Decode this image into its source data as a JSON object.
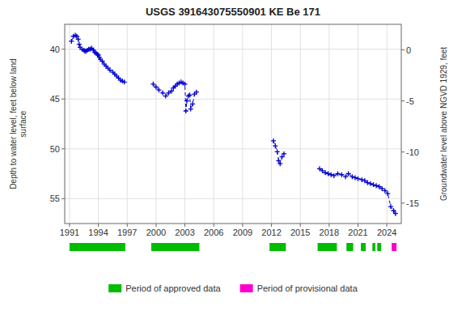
{
  "chart_data": {
    "type": "line",
    "title": "USGS 391643075550901 KE Be 171",
    "ylabel": "Depth to water level, feet below land\nsurface",
    "y2label": "Groundwater level above NGVD 1929, feet",
    "xlim": [
      1990.5,
      2025.5
    ],
    "xticks": [
      1991,
      1994,
      1997,
      2000,
      2003,
      2006,
      2009,
      2012,
      2015,
      2018,
      2021,
      2024
    ],
    "ylim": [
      57.5,
      37.5
    ],
    "yticks": [
      40,
      45,
      50,
      55
    ],
    "y2lim": [
      -17.0,
      2.5
    ],
    "y2ticks": [
      0,
      -5,
      -10,
      -15
    ],
    "grid": true,
    "color": "#0000cc",
    "line_style": "dashed",
    "marker": "plus",
    "series": [
      {
        "x": [
          1991.2,
          1991.4,
          1991.6,
          1991.75,
          1991.9,
          1992.0,
          1992.1,
          1992.3,
          1992.5,
          1992.6,
          1992.7,
          1992.85,
          1993.0,
          1993.15,
          1993.3,
          1993.5,
          1993.6,
          1993.75,
          1993.9,
          1994.0,
          1994.1,
          1994.2,
          1994.4,
          1994.6,
          1994.8,
          1995.0,
          1995.2,
          1995.5,
          1995.7,
          1995.9,
          1996.1,
          1996.3,
          1996.5,
          1996.7
        ],
        "values": [
          39.2,
          38.7,
          38.6,
          38.7,
          39.0,
          39.5,
          39.8,
          40.0,
          40.1,
          40.2,
          40.2,
          40.1,
          40.0,
          40.0,
          39.9,
          40.1,
          40.3,
          40.4,
          40.5,
          40.6,
          40.8,
          41.0,
          41.2,
          41.5,
          41.7,
          41.9,
          42.1,
          42.3,
          42.5,
          42.7,
          42.9,
          43.1,
          43.2,
          43.3
        ]
      },
      {
        "x": [
          1999.7,
          2000.0,
          2000.3,
          2000.7,
          2001.0,
          2001.3,
          2001.6,
          2001.8,
          2002.0,
          2002.2,
          2002.4,
          2002.6,
          2002.8,
          2003.0,
          2003.1,
          2003.2,
          2003.35,
          2003.5,
          2003.6,
          2003.8,
          2004.0,
          2004.2
        ],
        "values": [
          43.5,
          43.8,
          44.1,
          44.4,
          44.7,
          44.4,
          44.2,
          43.9,
          43.7,
          43.5,
          43.4,
          43.3,
          43.4,
          43.5,
          46.2,
          45.2,
          44.7,
          44.6,
          46.0,
          45.5,
          44.5,
          44.3
        ]
      },
      {
        "x": [
          2012.2,
          2012.4,
          2012.6,
          2012.75,
          2012.9,
          2013.1,
          2013.3
        ],
        "values": [
          49.2,
          49.7,
          50.3,
          51.2,
          51.5,
          50.8,
          50.5
        ]
      },
      {
        "x": [
          2017.0,
          2017.3,
          2017.6,
          2017.9,
          2018.2,
          2018.5,
          2018.9,
          2019.3,
          2019.7,
          2020.0,
          2020.4,
          2020.7,
          2021.0,
          2021.4,
          2021.7,
          2022.0,
          2022.3,
          2022.6,
          2022.9,
          2023.2,
          2023.5,
          2023.8,
          2024.1,
          2024.4,
          2024.7,
          2024.9
        ],
        "values": [
          52.0,
          52.2,
          52.4,
          52.5,
          52.6,
          52.7,
          52.5,
          52.6,
          52.8,
          52.5,
          52.8,
          52.9,
          53.0,
          53.1,
          53.2,
          53.4,
          53.5,
          53.6,
          53.7,
          53.8,
          54.0,
          54.2,
          54.5,
          55.8,
          56.2,
          56.5
        ]
      }
    ],
    "periods": [
      {
        "name": "Period of approved data",
        "color": "#00bb00",
        "ranges": [
          [
            1991.0,
            1996.8
          ],
          [
            1999.5,
            2004.5
          ],
          [
            2011.8,
            2013.5
          ],
          [
            2016.8,
            2018.8
          ],
          [
            2019.8,
            2020.5
          ],
          [
            2021.3,
            2021.8
          ],
          [
            2022.5,
            2022.8
          ],
          [
            2023.0,
            2023.4
          ]
        ]
      },
      {
        "name": "Period of provisional data",
        "color": "#ff00cc",
        "ranges": [
          [
            2024.5,
            2025.0
          ]
        ]
      }
    ]
  }
}
